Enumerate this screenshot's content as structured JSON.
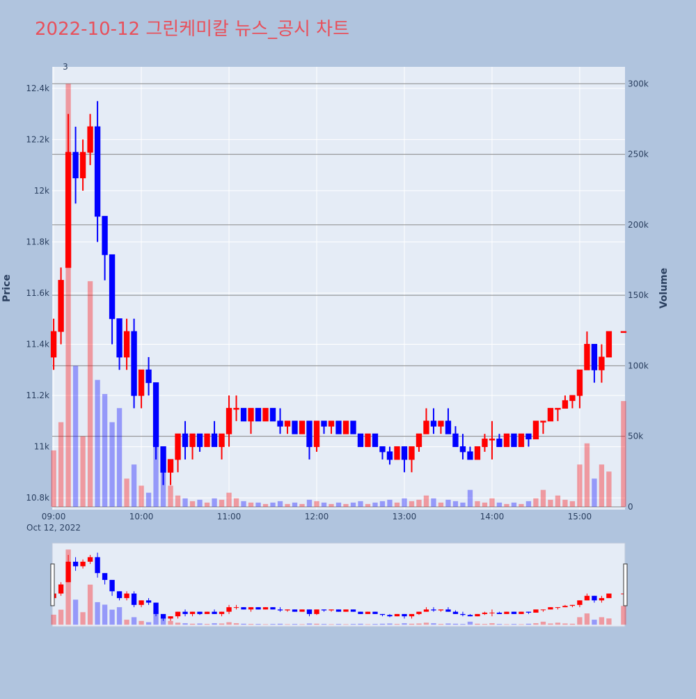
{
  "chart_data": {
    "type": "candlestick",
    "title": "2022-10-12 그린케미칼 뉴스_공시 차트",
    "y_label": "Price",
    "y2_label": "Volume",
    "x_date_label": "Oct 12, 2022",
    "annotation": {
      "text": "3",
      "x": "09:08"
    },
    "increasing_color": "#ff0000",
    "decreasing_color": "#0000ff",
    "xlim": [
      "08:59",
      "15:31"
    ],
    "xticks": [
      "09:00",
      "10:00",
      "11:00",
      "12:00",
      "13:00",
      "14:00",
      "15:00"
    ],
    "ylim": [
      10754,
      12484
    ],
    "yticks": [
      {
        "value": 10800,
        "label": "10.8k"
      },
      {
        "value": 11000,
        "label": "11k"
      },
      {
        "value": 11200,
        "label": "11.2k"
      },
      {
        "value": 11400,
        "label": "11.4k"
      },
      {
        "value": 11600,
        "label": "11.6k"
      },
      {
        "value": 11800,
        "label": "11.8k"
      },
      {
        "value": 12000,
        "label": "12k"
      },
      {
        "value": 12200,
        "label": "12.2k"
      },
      {
        "value": 12400,
        "label": "12.4k"
      }
    ],
    "y2lim": [
      -2000,
      312000
    ],
    "y2ticks": [
      0,
      {
        "value": 50000,
        "label": "50k"
      },
      {
        "value": 100000,
        "label": "100k"
      },
      {
        "value": 150000,
        "label": "150k"
      },
      {
        "value": 200000,
        "label": "200k"
      },
      {
        "value": 250000,
        "label": "250k"
      },
      {
        "value": 300000,
        "label": "300k"
      }
    ],
    "x": [
      "09:00",
      "09:05",
      "09:10",
      "09:15",
      "09:20",
      "09:25",
      "09:30",
      "09:35",
      "09:40",
      "09:45",
      "09:50",
      "09:55",
      "10:00",
      "10:05",
      "10:10",
      "10:15",
      "10:20",
      "10:25",
      "10:30",
      "10:35",
      "10:40",
      "10:45",
      "10:50",
      "10:55",
      "11:00",
      "11:05",
      "11:10",
      "11:15",
      "11:20",
      "11:25",
      "11:30",
      "11:35",
      "11:40",
      "11:45",
      "11:50",
      "11:55",
      "12:00",
      "12:05",
      "12:10",
      "12:15",
      "12:20",
      "12:25",
      "12:30",
      "12:35",
      "12:40",
      "12:45",
      "12:50",
      "12:55",
      "13:00",
      "13:05",
      "13:10",
      "13:15",
      "13:20",
      "13:25",
      "13:30",
      "13:35",
      "13:40",
      "13:45",
      "13:50",
      "13:55",
      "14:00",
      "14:05",
      "14:10",
      "14:15",
      "14:20",
      "14:25",
      "14:30",
      "14:35",
      "14:40",
      "14:45",
      "14:50",
      "14:55",
      "15:00",
      "15:05",
      "15:10",
      "15:15",
      "15:20",
      "15:30"
    ],
    "open": [
      11350,
      11450,
      11700,
      12150,
      12050,
      12150,
      12250,
      11900,
      11750,
      11500,
      11350,
      11450,
      11200,
      11300,
      11250,
      11000,
      10900,
      10950,
      11050,
      11000,
      11050,
      11000,
      11050,
      11000,
      11050,
      11150,
      11150,
      11100,
      11150,
      11100,
      11150,
      11100,
      11080,
      11100,
      11050,
      11100,
      11000,
      11100,
      11080,
      11100,
      11050,
      11100,
      11050,
      11000,
      11050,
      11000,
      10980,
      10950,
      11000,
      10950,
      11000,
      11050,
      11100,
      11080,
      11100,
      11050,
      11000,
      10980,
      10950,
      11000,
      11030,
      11030,
      11000,
      11050,
      11000,
      11050,
      11030,
      11100,
      11100,
      11150,
      11150,
      11180,
      11200,
      11300,
      11400,
      11300,
      11350,
      11450
    ],
    "high": [
      11500,
      11700,
      12300,
      12250,
      12200,
      12300,
      12350,
      11900,
      11750,
      11500,
      11500,
      11500,
      11300,
      11350,
      11250,
      11000,
      10950,
      11050,
      11100,
      11050,
      11050,
      11050,
      11100,
      11050,
      11200,
      11200,
      11150,
      11150,
      11150,
      11150,
      11150,
      11150,
      11100,
      11100,
      11100,
      11100,
      11100,
      11100,
      11100,
      11100,
      11100,
      11100,
      11050,
      11050,
      11050,
      11000,
      11000,
      11000,
      11000,
      11000,
      11050,
      11150,
      11150,
      11100,
      11150,
      11080,
      11050,
      11000,
      11000,
      11050,
      11100,
      11050,
      11050,
      11050,
      11050,
      11050,
      11100,
      11100,
      11150,
      11150,
      11200,
      11200,
      11300,
      11450,
      11400,
      11400,
      11450,
      11450
    ],
    "low": [
      11300,
      11400,
      11700,
      11950,
      12000,
      12100,
      11800,
      11650,
      11400,
      11300,
      11300,
      11150,
      11150,
      11200,
      10950,
      10850,
      10850,
      10900,
      10950,
      10950,
      10980,
      11000,
      11000,
      10950,
      11000,
      11100,
      11100,
      11050,
      11100,
      11100,
      11100,
      11050,
      11050,
      11050,
      11050,
      10950,
      10980,
      11050,
      11050,
      11050,
      11050,
      11050,
      11000,
      11000,
      11000,
      10950,
      10930,
      10950,
      10900,
      10900,
      10980,
      11050,
      11050,
      11050,
      11050,
      11000,
      10950,
      10950,
      10950,
      10980,
      10950,
      11000,
      11000,
      11000,
      11000,
      11000,
      11030,
      11050,
      11100,
      11100,
      11150,
      11150,
      11150,
      11300,
      11250,
      11250,
      11350,
      11450
    ],
    "close": [
      11450,
      11650,
      12150,
      12050,
      12150,
      12250,
      11900,
      11750,
      11500,
      11350,
      11450,
      11200,
      11300,
      11250,
      11000,
      10900,
      10950,
      11050,
      11000,
      11050,
      11000,
      11050,
      11000,
      11050,
      11150,
      11150,
      11100,
      11150,
      11100,
      11150,
      11100,
      11080,
      11100,
      11050,
      11100,
      11000,
      11100,
      11080,
      11100,
      11050,
      11100,
      11050,
      11000,
      11050,
      11000,
      10980,
      10950,
      11000,
      10950,
      11000,
      11050,
      11100,
      11080,
      11100,
      11050,
      11000,
      10980,
      10950,
      11000,
      11030,
      11030,
      11000,
      11050,
      11000,
      11050,
      11030,
      11100,
      11100,
      11150,
      11150,
      11180,
      11200,
      11300,
      11400,
      11300,
      11350,
      11450,
      11450
    ],
    "volume": [
      40000,
      60000,
      300000,
      100000,
      50000,
      160000,
      90000,
      80000,
      60000,
      70000,
      20000,
      30000,
      15000,
      10000,
      60000,
      30000,
      15000,
      8000,
      6000,
      4000,
      5000,
      3000,
      6000,
      5000,
      10000,
      6000,
      4000,
      3000,
      3000,
      2000,
      3000,
      4000,
      2000,
      3000,
      2000,
      5000,
      4000,
      3000,
      2000,
      3000,
      2000,
      3000,
      4000,
      2000,
      3000,
      4000,
      5000,
      3000,
      6000,
      4000,
      5000,
      8000,
      6000,
      3000,
      5000,
      4000,
      3000,
      12000,
      4000,
      3000,
      6000,
      3000,
      2000,
      3000,
      2000,
      4000,
      6000,
      12000,
      5000,
      8000,
      5000,
      4000,
      30000,
      45000,
      20000,
      30000,
      25000,
      75000
    ]
  }
}
